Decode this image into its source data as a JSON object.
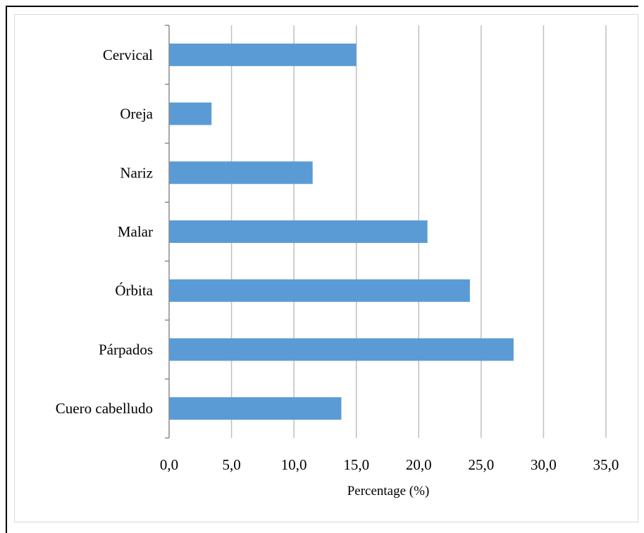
{
  "chart_data": {
    "type": "bar",
    "orientation": "horizontal",
    "categories": [
      "Cervical",
      "Oreja",
      "Nariz",
      "Malar",
      "Órbita",
      "Párpados",
      "Cuero cabelludo"
    ],
    "values": [
      15.0,
      3.4,
      11.5,
      20.7,
      24.1,
      27.6,
      13.8
    ],
    "xlabel": "Percentage (%)",
    "ylabel": "",
    "xlim": [
      0,
      35
    ],
    "xticks": [
      "0,0",
      "5,0",
      "10,0",
      "15,0",
      "20,0",
      "25,0",
      "30,0",
      "35,0"
    ],
    "grid": "vertical",
    "bar_color": "#5b9bd5",
    "legend": "none"
  }
}
